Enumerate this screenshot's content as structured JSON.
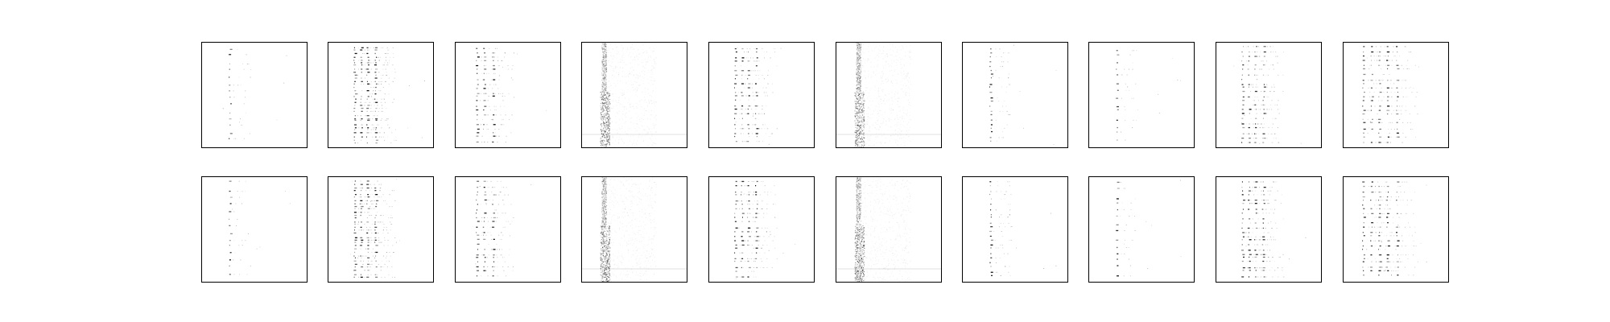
{
  "figure": {
    "rows": 2,
    "cols": 10,
    "axis_frame_color": "#000000",
    "background_color": "#ffffff",
    "mark_color": "#000000"
  },
  "panels": [
    {
      "row": 0,
      "col": 0,
      "pattern": "single-column-dots",
      "density": "sparse",
      "column_count": 1
    },
    {
      "row": 0,
      "col": 1,
      "pattern": "multi-column-dots",
      "density": "dense",
      "column_count": 4
    },
    {
      "row": 0,
      "col": 2,
      "pattern": "multi-column-dots",
      "density": "medium",
      "column_count": 3
    },
    {
      "row": 0,
      "col": 3,
      "pattern": "noise-band",
      "density": "dense",
      "column_count": 1
    },
    {
      "row": 0,
      "col": 4,
      "pattern": "multi-column-dots",
      "density": "medium",
      "column_count": 4
    },
    {
      "row": 0,
      "col": 5,
      "pattern": "noise-band",
      "density": "dense",
      "column_count": 1
    },
    {
      "row": 0,
      "col": 6,
      "pattern": "single-column-dots",
      "density": "medium",
      "column_count": 1
    },
    {
      "row": 0,
      "col": 7,
      "pattern": "single-column-dots",
      "density": "sparse",
      "column_count": 1
    },
    {
      "row": 0,
      "col": 8,
      "pattern": "multi-column-dots",
      "density": "medium",
      "column_count": 4
    },
    {
      "row": 0,
      "col": 9,
      "pattern": "multi-column-dots",
      "density": "medium",
      "column_count": 5
    },
    {
      "row": 1,
      "col": 0,
      "pattern": "single-column-dots",
      "density": "sparse",
      "column_count": 1
    },
    {
      "row": 1,
      "col": 1,
      "pattern": "multi-column-dots",
      "density": "dense",
      "column_count": 4
    },
    {
      "row": 1,
      "col": 2,
      "pattern": "multi-column-dots",
      "density": "medium",
      "column_count": 3
    },
    {
      "row": 1,
      "col": 3,
      "pattern": "noise-band",
      "density": "dense",
      "column_count": 1
    },
    {
      "row": 1,
      "col": 4,
      "pattern": "multi-column-dots",
      "density": "medium",
      "column_count": 4
    },
    {
      "row": 1,
      "col": 5,
      "pattern": "noise-band",
      "density": "dense",
      "column_count": 1
    },
    {
      "row": 1,
      "col": 6,
      "pattern": "single-column-dots",
      "density": "medium",
      "column_count": 1
    },
    {
      "row": 1,
      "col": 7,
      "pattern": "single-column-dots",
      "density": "sparse",
      "column_count": 1
    },
    {
      "row": 1,
      "col": 8,
      "pattern": "multi-column-dots",
      "density": "medium",
      "column_count": 4
    },
    {
      "row": 1,
      "col": 9,
      "pattern": "multi-column-dots",
      "density": "medium",
      "column_count": 5
    }
  ]
}
